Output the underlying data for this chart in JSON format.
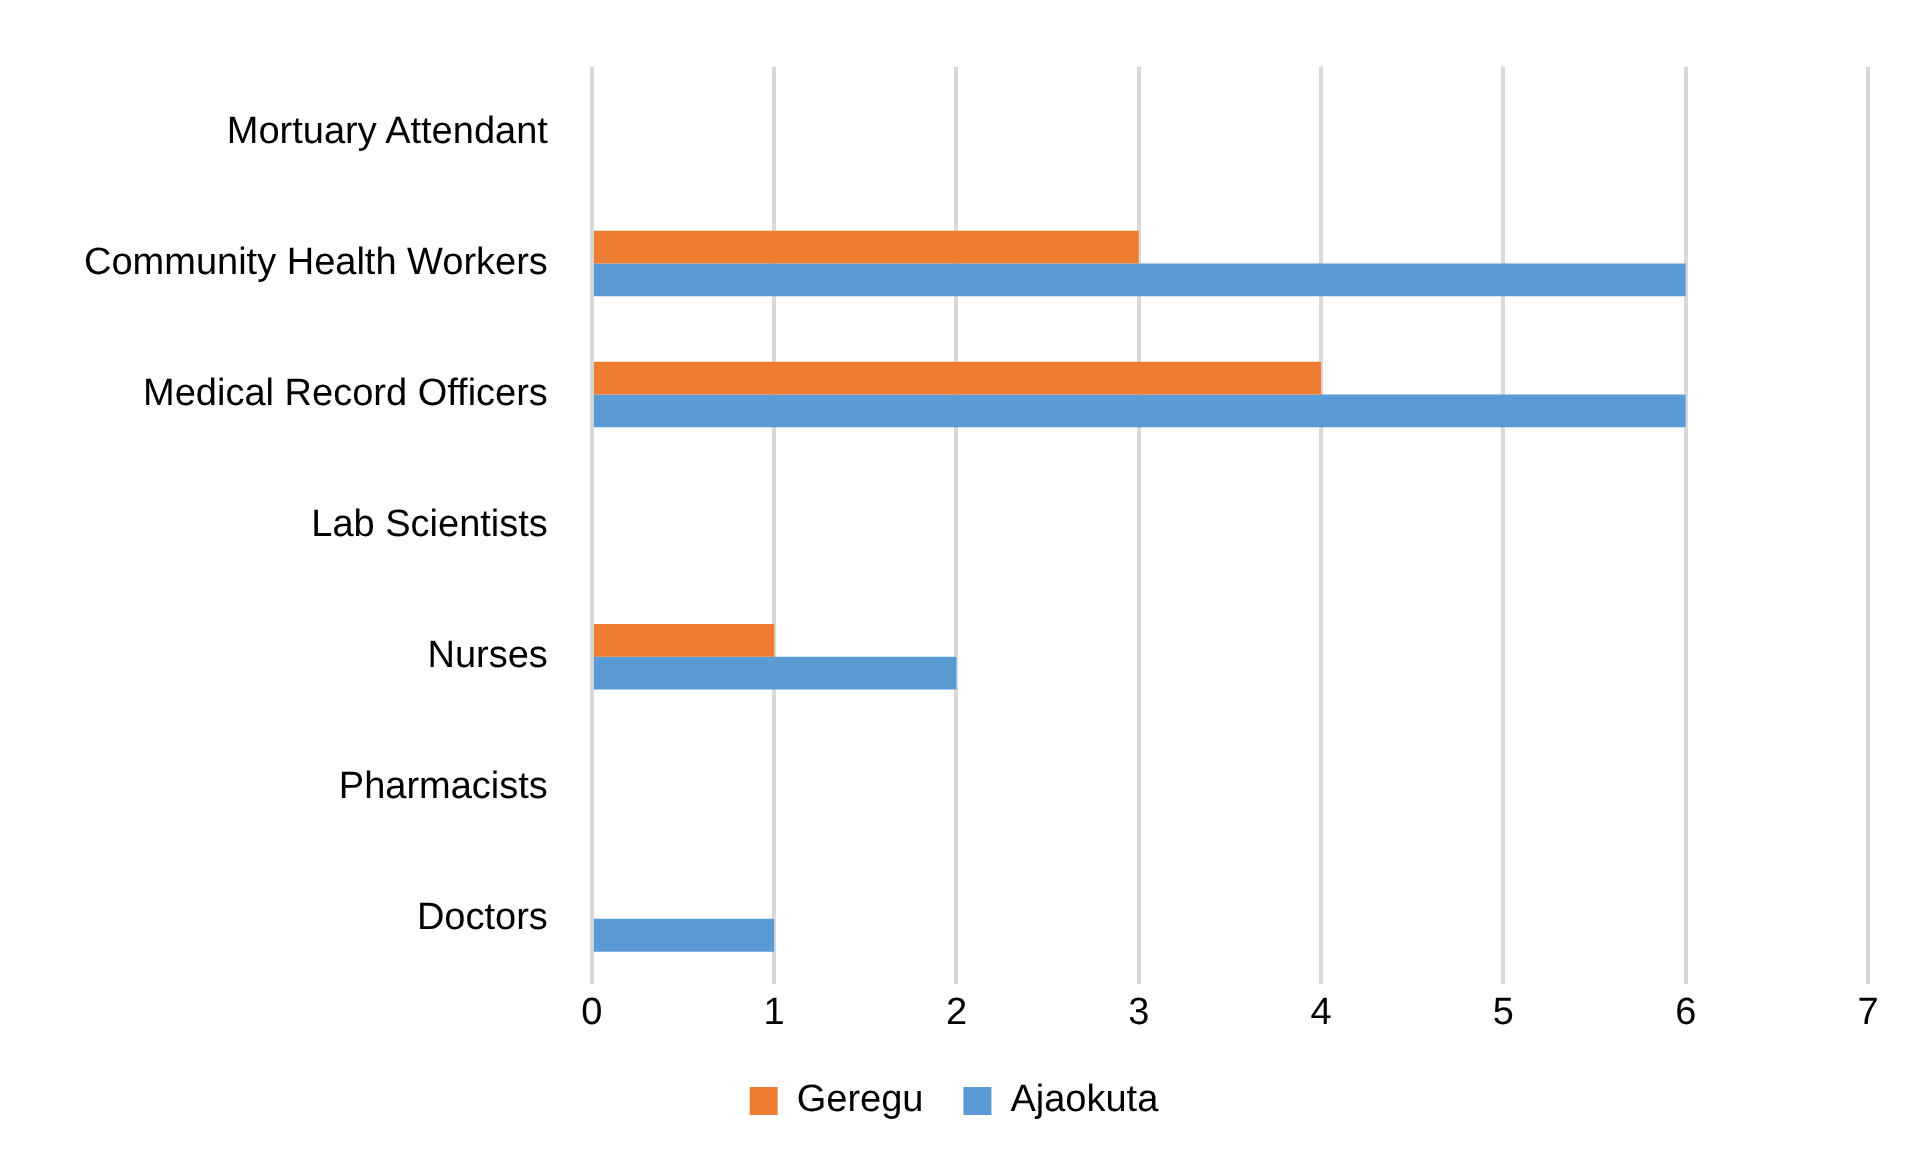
{
  "chart_data": {
    "type": "bar",
    "orientation": "horizontal",
    "categories": [
      "Mortuary Attendant",
      "Community Health Workers",
      "Medical Record Officers",
      "Lab Scientists",
      "Nurses",
      "Pharmacists",
      "Doctors"
    ],
    "series": [
      {
        "name": "Geregu",
        "color": "#ed7d31",
        "values": [
          0,
          3,
          4,
          0,
          1,
          0,
          0
        ]
      },
      {
        "name": "Ajaokuta",
        "color": "#5b9bd5",
        "values": [
          0,
          6,
          6,
          0,
          2,
          0,
          1
        ]
      }
    ],
    "xlim": [
      0,
      7
    ],
    "xticks": [
      0,
      1,
      2,
      3,
      4,
      5,
      6,
      7
    ],
    "grid": "x",
    "legend": "bottom"
  }
}
